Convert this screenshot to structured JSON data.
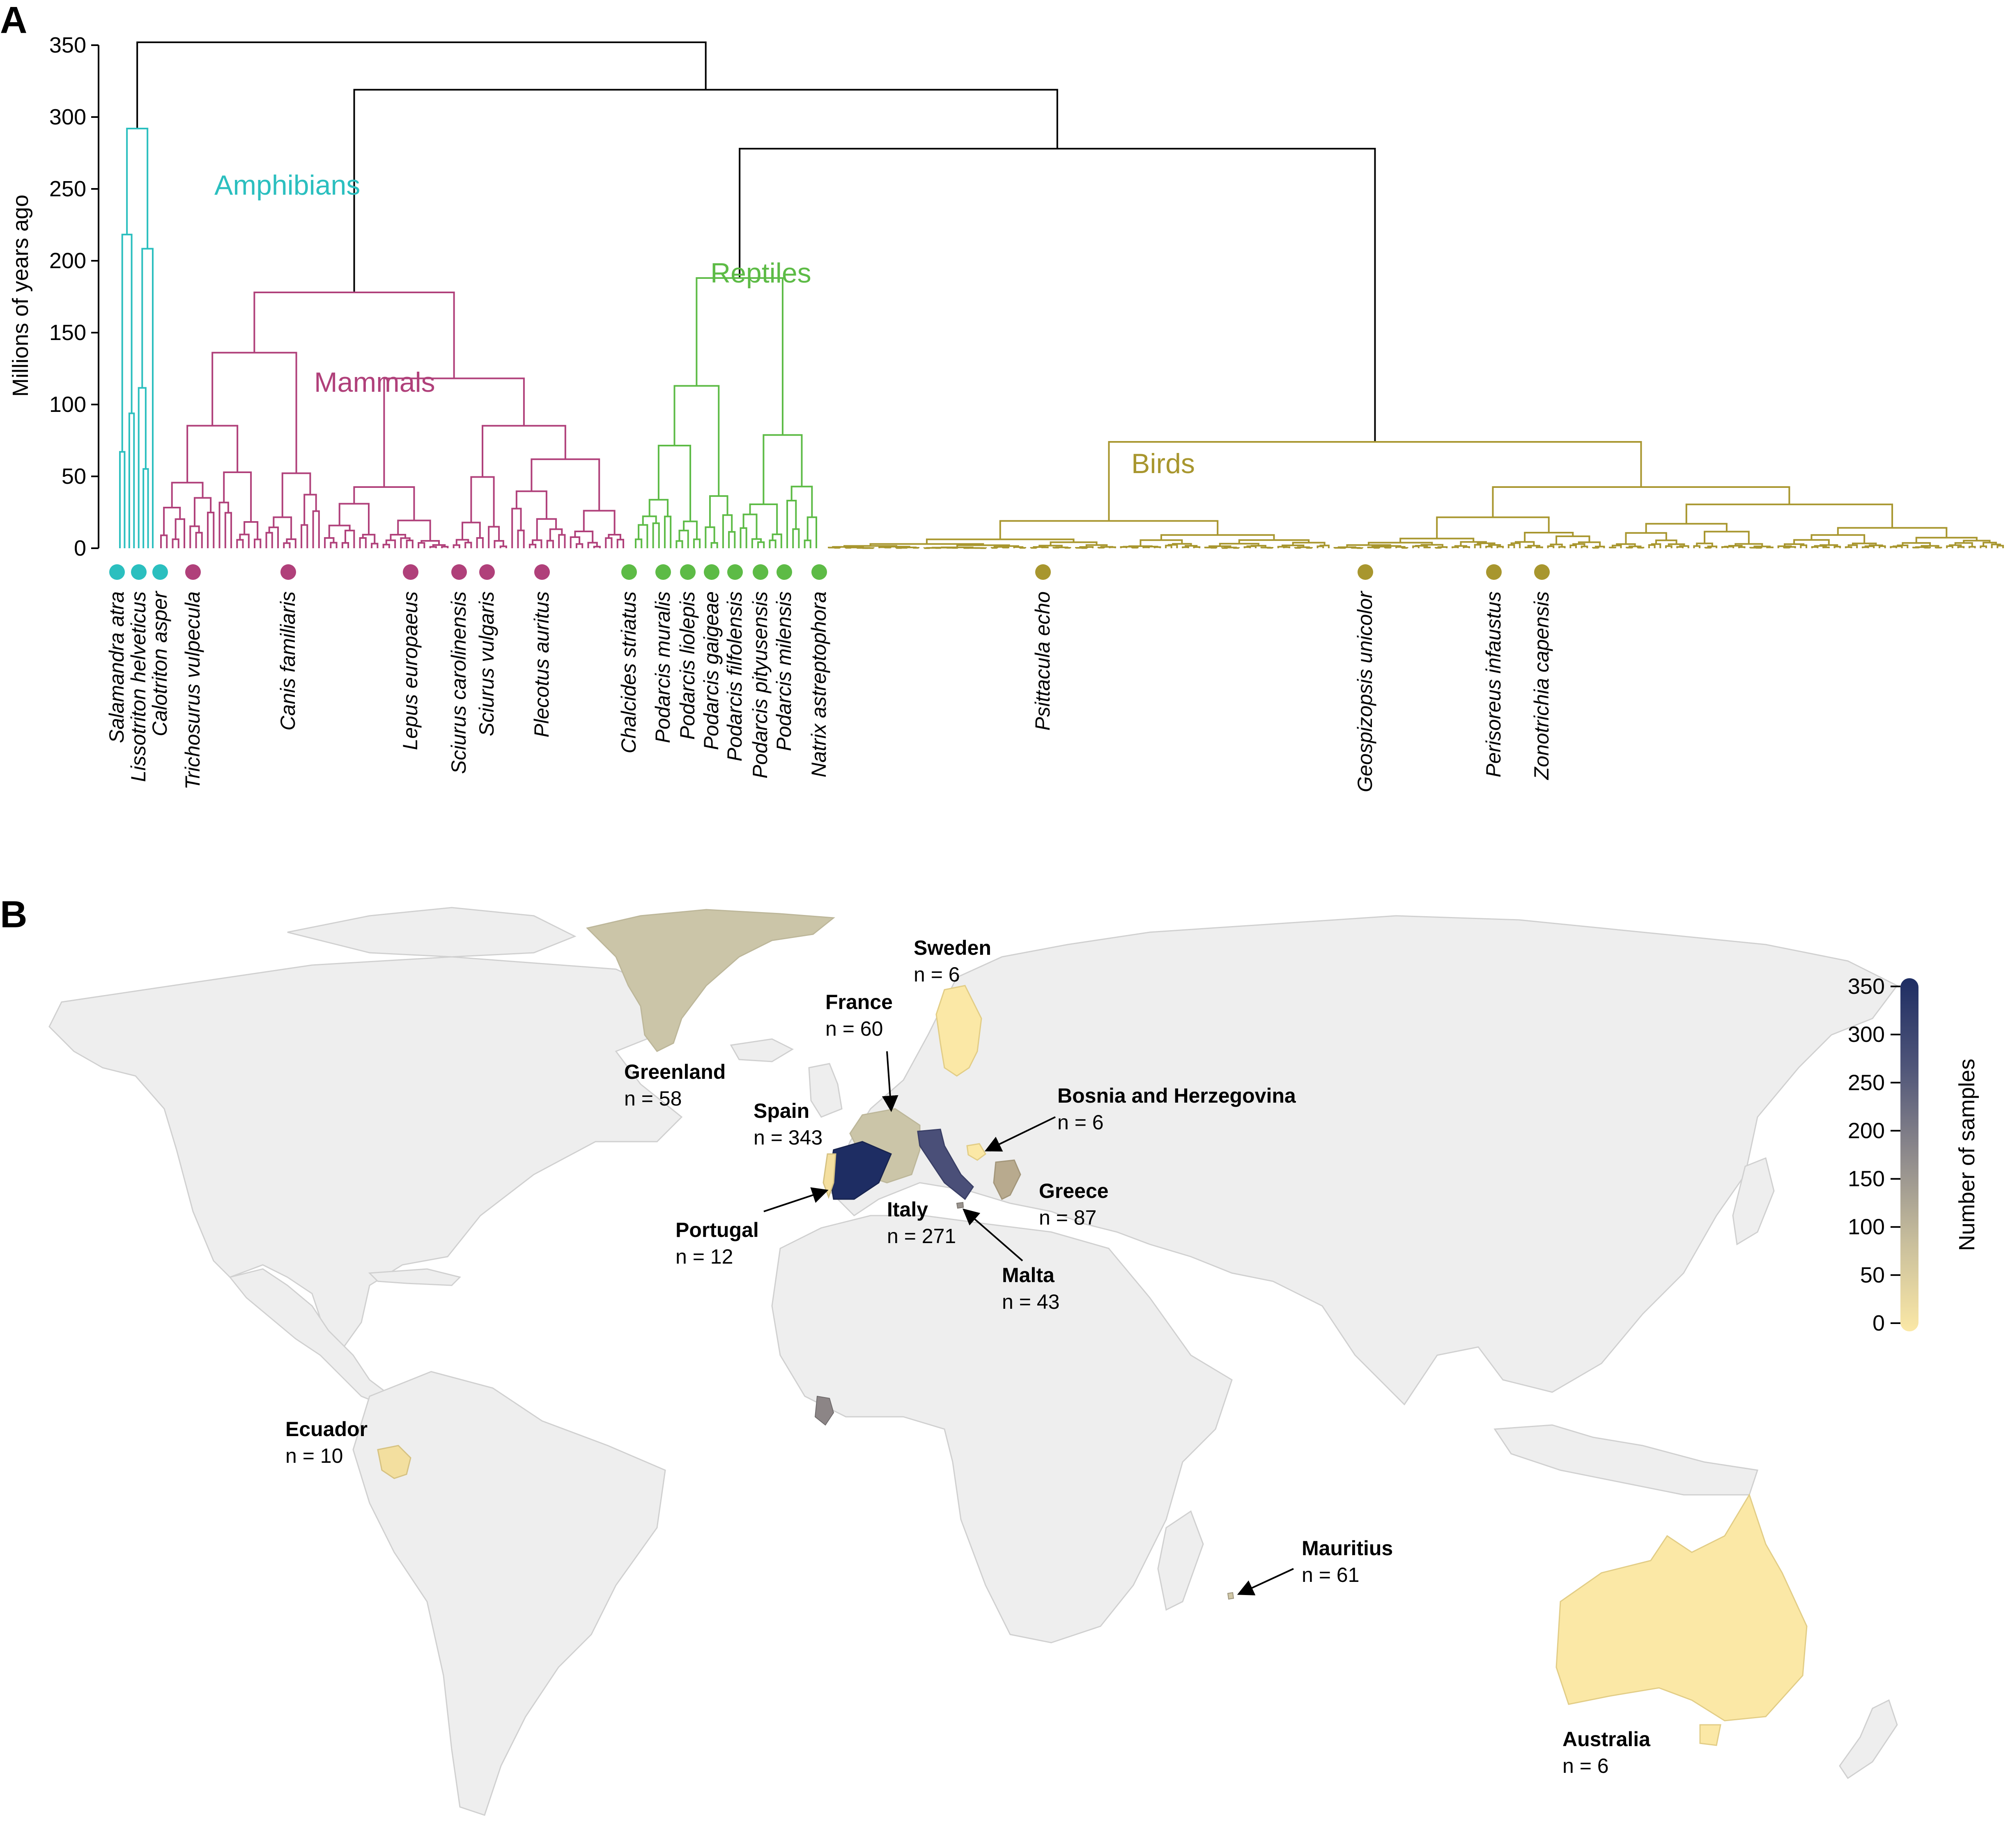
{
  "panels": {
    "a": "A",
    "b": "B"
  },
  "tree": {
    "ylabel": "Millions of years ago",
    "yticks": [
      0,
      50,
      100,
      150,
      200,
      250,
      300,
      350
    ],
    "ylim": [
      0,
      350
    ],
    "colors": {
      "backbone": "#000000",
      "amphibians": "#2bbfbf",
      "mammals": "#b0407a",
      "reptiles": "#5dbb46",
      "birds": "#a8962e"
    },
    "clades": [
      {
        "key": "amphibians",
        "label": "Amphibians"
      },
      {
        "key": "mammals",
        "label": "Mammals"
      },
      {
        "key": "reptiles",
        "label": "Reptiles"
      },
      {
        "key": "birds",
        "label": "Birds"
      }
    ],
    "splits_mya": {
      "root": 352,
      "amniotes": 319,
      "sauropsids": 278,
      "amphibians": 292,
      "mammals": 178,
      "reptiles": 188,
      "birds": 74
    },
    "species": [
      {
        "name": "Salamandra atra",
        "clade": "amphibians"
      },
      {
        "name": "Lissotriton helveticus",
        "clade": "amphibians"
      },
      {
        "name": "Calotriton asper",
        "clade": "amphibians"
      },
      {
        "name": "Trichosurus vulpecula",
        "clade": "mammals"
      },
      {
        "name": "Canis familiaris",
        "clade": "mammals"
      },
      {
        "name": "Lepus europaeus",
        "clade": "mammals"
      },
      {
        "name": "Sciurus carolinensis",
        "clade": "mammals"
      },
      {
        "name": "Sciurus vulgaris",
        "clade": "mammals"
      },
      {
        "name": "Plecotus auritus",
        "clade": "mammals"
      },
      {
        "name": "Chalcides striatus",
        "clade": "reptiles"
      },
      {
        "name": "Podarcis muralis",
        "clade": "reptiles"
      },
      {
        "name": "Podarcis liolepis",
        "clade": "reptiles"
      },
      {
        "name": "Podarcis gaigeae",
        "clade": "reptiles"
      },
      {
        "name": "Podarcis filfolensis",
        "clade": "reptiles"
      },
      {
        "name": "Podarcis pityusensis",
        "clade": "reptiles"
      },
      {
        "name": "Podarcis milensis",
        "clade": "reptiles"
      },
      {
        "name": "Natrix astreptophora",
        "clade": "reptiles"
      },
      {
        "name": "Psittacula echo",
        "clade": "birds"
      },
      {
        "name": "Geospizopsis unicolor",
        "clade": "birds"
      },
      {
        "name": "Perisoreus infaustus",
        "clade": "birds"
      },
      {
        "name": "Zonotrichia capensis",
        "clade": "birds"
      }
    ]
  },
  "map": {
    "legend": {
      "title": "Number of samples",
      "ticks": [
        0,
        50,
        100,
        150,
        200,
        250,
        300,
        350
      ],
      "colors": [
        "#fbe8a6",
        "#c9bf9c",
        "#8e8a8c",
        "#4f5579",
        "#1e2d63"
      ]
    },
    "countries": [
      {
        "name": "Greenland",
        "count": "n = 58",
        "value": 58
      },
      {
        "name": "Sweden",
        "count": "n = 6",
        "value": 6
      },
      {
        "name": "France",
        "count": "n = 60",
        "value": 60
      },
      {
        "name": "Spain",
        "count": "n = 343",
        "value": 343
      },
      {
        "name": "Bosnia and Herzegovina",
        "count": "n = 6",
        "value": 6
      },
      {
        "name": "Greece",
        "count": "n = 87",
        "value": 87
      },
      {
        "name": "Italy",
        "count": "n = 271",
        "value": 271
      },
      {
        "name": "Portugal",
        "count": "n = 12",
        "value": 12
      },
      {
        "name": "Malta",
        "count": "n = 43",
        "value": 43
      },
      {
        "name": "Ecuador",
        "count": "n = 10",
        "value": 10
      },
      {
        "name": "Mauritius",
        "count": "n = 61",
        "value": 61
      },
      {
        "name": "Australia",
        "count": "n = 6",
        "value": 6
      }
    ]
  }
}
